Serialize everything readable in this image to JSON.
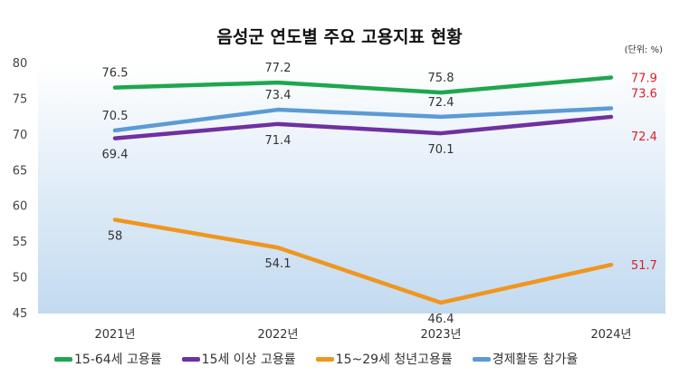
{
  "chart_data": {
    "type": "line",
    "title": "음성군 연도별 주요 고용지표 현황",
    "unit": "(단위: %)",
    "categories": [
      "2021년",
      "2022년",
      "2023년",
      "2024년"
    ],
    "ylim": [
      45,
      80
    ],
    "yticks": [
      45,
      50,
      55,
      60,
      65,
      70,
      75,
      80
    ],
    "grid": false,
    "legend": "bottom",
    "series": [
      {
        "name": "15-64세 고용률",
        "values": [
          76.5,
          77.2,
          75.8,
          77.9
        ],
        "color": "#1fa64e"
      },
      {
        "name": "15세 이상 고용률",
        "values": [
          69.4,
          71.4,
          70.1,
          72.4
        ],
        "color": "#7030a0"
      },
      {
        "name": "15~29세 청년고용률",
        "values": [
          58,
          54.1,
          46.4,
          51.7
        ],
        "color": "#f0961e"
      },
      {
        "name": "경제활동 참가율",
        "values": [
          70.5,
          73.4,
          72.4,
          73.6
        ],
        "color": "#5b9bd5"
      }
    ],
    "highlight_color": "#d9202a"
  }
}
